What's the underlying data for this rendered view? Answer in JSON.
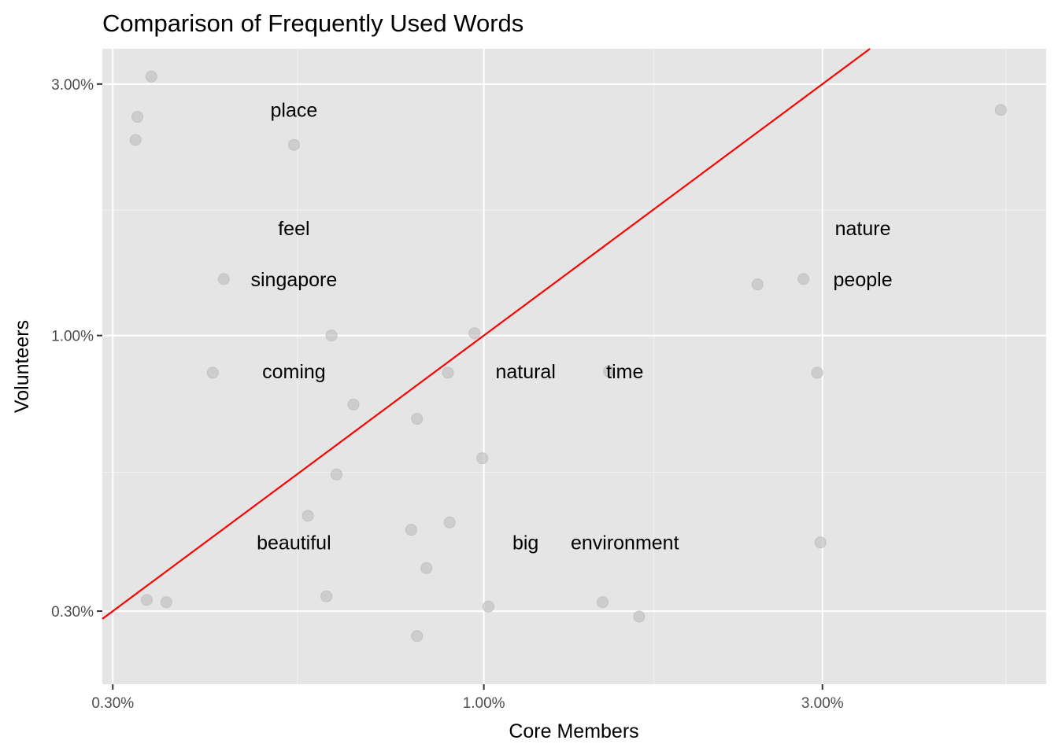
{
  "chart_data": {
    "type": "scatter",
    "title": "Comparison of Frequently Used Words",
    "xlabel": "Core Members",
    "ylabel": "Volunteers",
    "x_scale": "log10",
    "y_scale": "log10",
    "xlim": [
      0.29,
      6.2
    ],
    "ylim": [
      0.218,
      3.5
    ],
    "x_ticks": [
      0.3,
      1,
      3
    ],
    "x_tick_labels": [
      "0.30%",
      "1.00%",
      "3.00%"
    ],
    "x_minor_ticks": [
      0.546,
      1.735,
      5.44
    ],
    "y_ticks": [
      0.3,
      1,
      3
    ],
    "y_tick_labels": [
      "0.30%",
      "1.00%",
      "3.00%"
    ],
    "y_minor_ticks": [
      0.55,
      1.73
    ],
    "grid": true,
    "reference_line": {
      "type": "y=x",
      "color": "#ff0000"
    },
    "point_color": "#bdbdbd",
    "points": [
      {
        "x": 0.34,
        "y": 3.1
      },
      {
        "x": 0.325,
        "y": 2.6
      },
      {
        "x": 0.323,
        "y": 2.35
      },
      {
        "x": 0.54,
        "y": 2.3
      },
      {
        "x": 0.43,
        "y": 1.28
      },
      {
        "x": 0.415,
        "y": 0.85
      },
      {
        "x": 0.61,
        "y": 1.0
      },
      {
        "x": 0.655,
        "y": 0.74
      },
      {
        "x": 0.62,
        "y": 0.545
      },
      {
        "x": 0.565,
        "y": 0.455
      },
      {
        "x": 0.6,
        "y": 0.32
      },
      {
        "x": 0.335,
        "y": 0.315
      },
      {
        "x": 0.357,
        "y": 0.312
      },
      {
        "x": 0.79,
        "y": 0.428
      },
      {
        "x": 0.805,
        "y": 0.695
      },
      {
        "x": 0.83,
        "y": 0.362
      },
      {
        "x": 0.805,
        "y": 0.269
      },
      {
        "x": 0.89,
        "y": 0.85
      },
      {
        "x": 0.895,
        "y": 0.442
      },
      {
        "x": 0.97,
        "y": 1.01
      },
      {
        "x": 0.995,
        "y": 0.585
      },
      {
        "x": 1.015,
        "y": 0.306
      },
      {
        "x": 1.47,
        "y": 0.312
      },
      {
        "x": 1.5,
        "y": 0.855
      },
      {
        "x": 1.655,
        "y": 0.293
      },
      {
        "x": 2.43,
        "y": 1.25
      },
      {
        "x": 2.82,
        "y": 1.28
      },
      {
        "x": 2.95,
        "y": 0.85
      },
      {
        "x": 2.98,
        "y": 0.405
      },
      {
        "x": 5.35,
        "y": 2.68
      }
    ],
    "labels": [
      {
        "text": "place",
        "x": 0.54,
        "y": 2.68
      },
      {
        "text": "feel",
        "x": 0.54,
        "y": 1.6
      },
      {
        "text": "singapore",
        "x": 0.54,
        "y": 1.28
      },
      {
        "text": "coming",
        "x": 0.54,
        "y": 0.855
      },
      {
        "text": "natural",
        "x": 1.145,
        "y": 0.855
      },
      {
        "text": "time",
        "x": 1.58,
        "y": 0.855
      },
      {
        "text": "nature",
        "x": 3.42,
        "y": 1.6
      },
      {
        "text": "people",
        "x": 3.42,
        "y": 1.28
      },
      {
        "text": "beautiful",
        "x": 0.54,
        "y": 0.405
      },
      {
        "text": "big",
        "x": 1.145,
        "y": 0.405
      },
      {
        "text": "environment",
        "x": 1.58,
        "y": 0.405
      }
    ]
  }
}
